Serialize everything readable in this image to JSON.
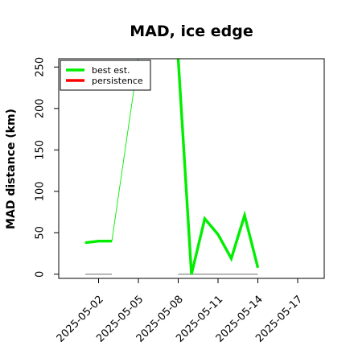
{
  "chart_data": {
    "type": "line",
    "title": "MAD, ice edge",
    "xlabel": "",
    "ylabel": "MAD distance (km)",
    "x_ticks": [
      "2025-05-02",
      "2025-05-05",
      "2025-05-08",
      "2025-05-11",
      "2025-05-14",
      "2025-05-17"
    ],
    "xlim": [
      "2025-04-29",
      "2025-05-19"
    ],
    "ylim": [
      -5,
      260
    ],
    "y_ticks": [
      0,
      50,
      100,
      150,
      200,
      250
    ],
    "grid": false,
    "legend_position": "top-left",
    "series": [
      {
        "name": "best est.",
        "color": "#00ee00",
        "segments": [
          {
            "x": [
              "2025-05-01",
              "2025-05-02",
              "2025-05-03"
            ],
            "y": [
              38,
              40,
              40
            ]
          },
          {
            "x": [
              "2025-05-08",
              "2025-05-09",
              "2025-05-10",
              "2025-05-11",
              "2025-05-12",
              "2025-05-13",
              "2025-05-14"
            ],
            "y": [
              260,
              0,
              67,
              48,
              19,
              71,
              8
            ]
          }
        ],
        "connector": {
          "x": [
            "2025-05-03",
            "2025-05-04",
            "2025-05-05"
          ],
          "y": [
            40,
            150,
            260
          ]
        }
      },
      {
        "name": "persistence",
        "color": "#ff0000",
        "segments": []
      }
    ],
    "baselines": [
      {
        "x": [
          "2025-05-01",
          "2025-05-03"
        ],
        "y": [
          0,
          0
        ],
        "color": "#888888"
      },
      {
        "x": [
          "2025-05-08",
          "2025-05-14"
        ],
        "y": [
          0,
          0
        ],
        "color": "#888888"
      }
    ]
  }
}
